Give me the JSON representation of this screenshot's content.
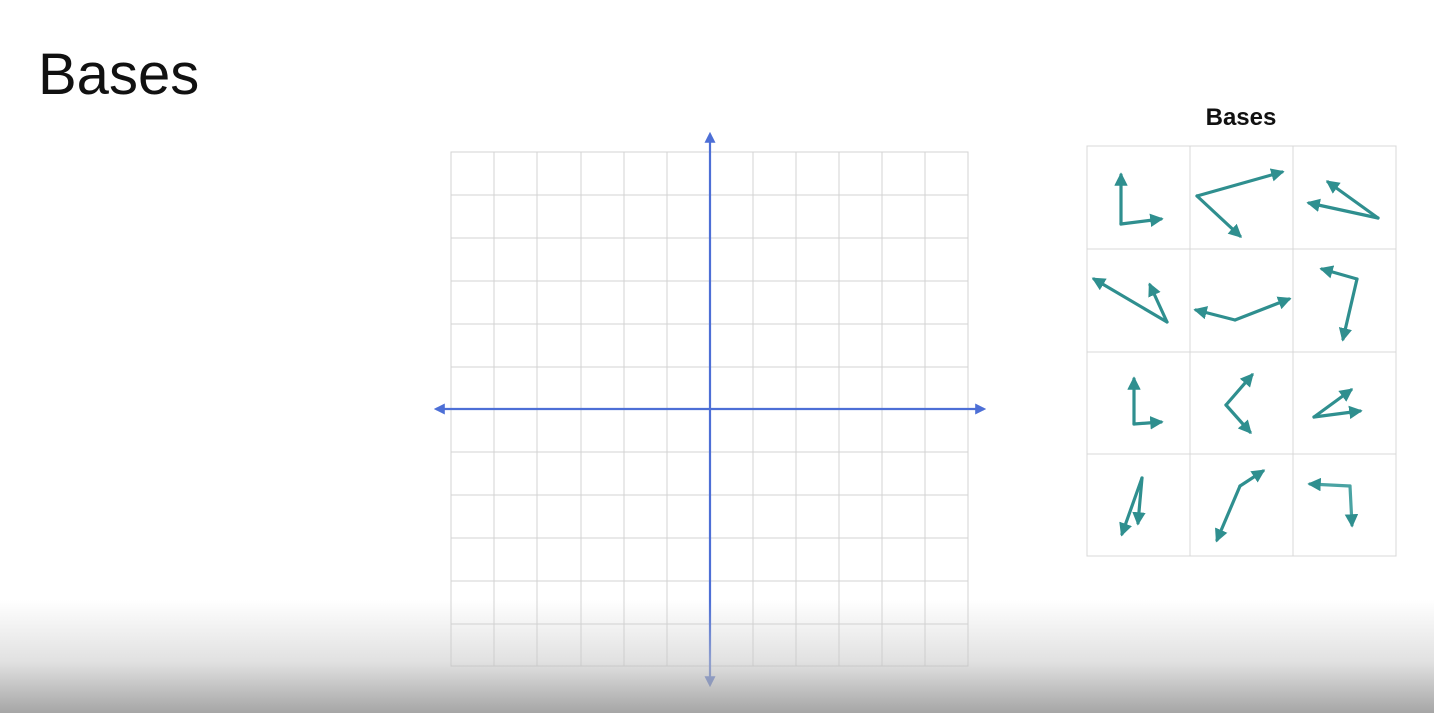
{
  "slide": {
    "title": "Bases"
  },
  "coordinate_plane": {
    "grid_cells_x": 12,
    "grid_cells_y": 12,
    "grid_color": "#d3d3d3",
    "axis_color": "#4d6fd6"
  },
  "bases_panel": {
    "heading": "Bases",
    "rows": 4,
    "cols": 3,
    "grid_color": "#d8d8d8",
    "arrow_color": "#2f8f8f"
  }
}
